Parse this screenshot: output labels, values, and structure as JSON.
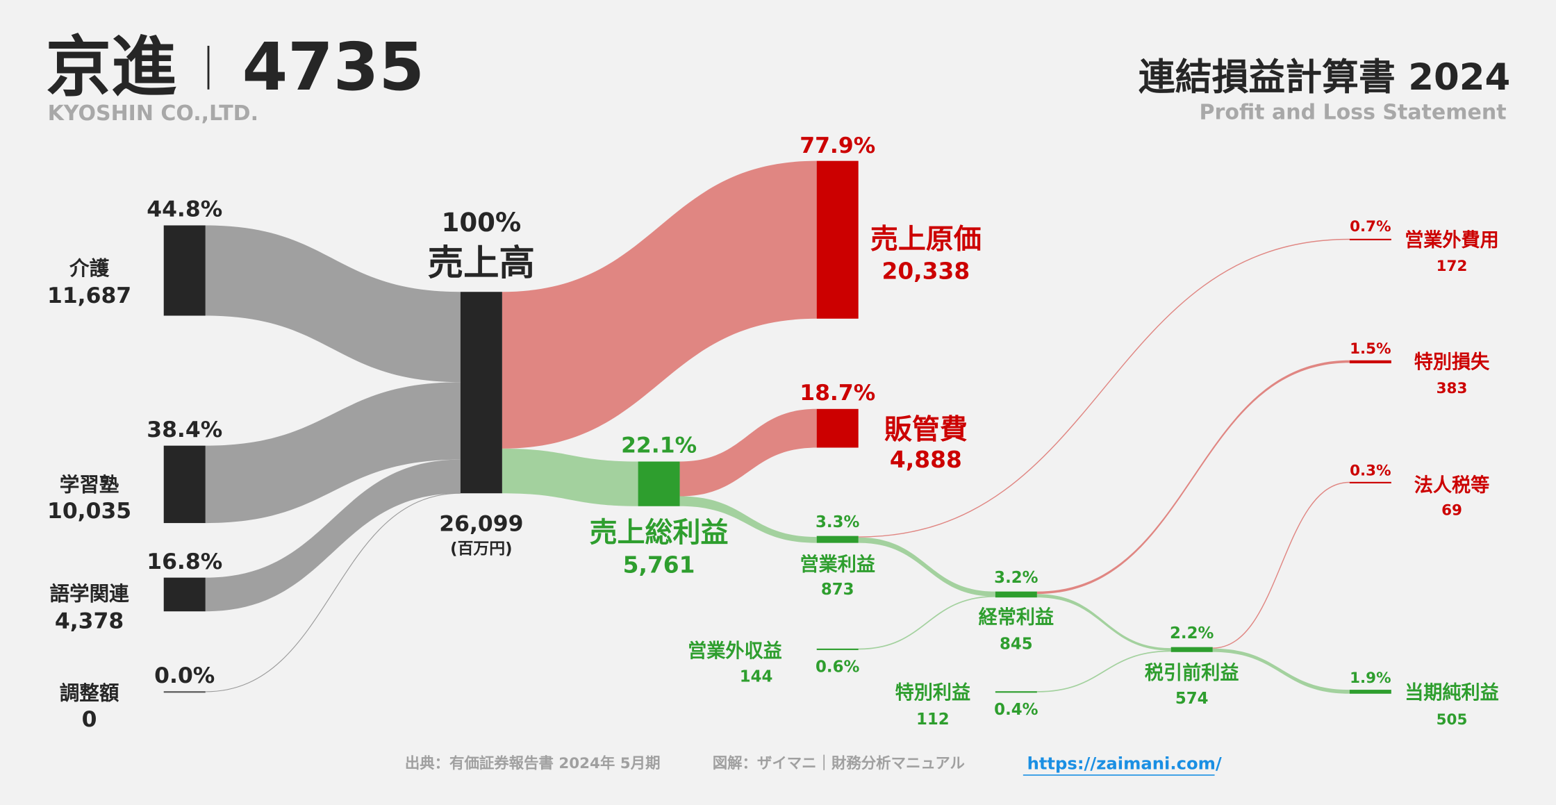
{
  "header": {
    "company": "京進",
    "separator": "｜",
    "ticker": "4735",
    "company_en": "KYOSHIN CO.,LTD.",
    "title": "連結損益計算書 2024",
    "subtitle": "Profit and Loss Statement"
  },
  "chart_data": {
    "type": "sankey",
    "unit": "(百万円)",
    "colors": {
      "node_dark": "#262626",
      "cost_red": "#cc0000",
      "profit_green": "#2e9e2e",
      "flow_gray": "#a0a0a0",
      "flow_red": "#e08682",
      "flow_green": "#a3d19e"
    },
    "segments": [
      {
        "name": "介護",
        "value": "11,687",
        "pct": "44.8%"
      },
      {
        "name": "学習塾",
        "value": "10,035",
        "pct": "38.4%"
      },
      {
        "name": "語学関連",
        "value": "4,378",
        "pct": "16.8%"
      },
      {
        "name": "調整額",
        "value": "0",
        "pct": "0.0%"
      }
    ],
    "revenue": {
      "name": "売上高",
      "value": "26,099",
      "pct": "100%"
    },
    "cost_of_sales": {
      "name": "売上原価",
      "value": "20,338",
      "pct": "77.9%"
    },
    "gross_profit": {
      "name": "売上総利益",
      "value": "5,761",
      "pct": "22.1%"
    },
    "sga": {
      "name": "販管費",
      "value": "4,888",
      "pct": "18.7%"
    },
    "operating_profit": {
      "name": "営業利益",
      "value": "873",
      "pct": "3.3%"
    },
    "non_operating_income": {
      "name": "営業外収益",
      "value": "144",
      "pct": "0.6%"
    },
    "non_operating_expense": {
      "name": "営業外費用",
      "value": "172",
      "pct": "0.7%"
    },
    "ordinary_profit": {
      "name": "経常利益",
      "value": "845",
      "pct": "3.2%"
    },
    "extraordinary_income": {
      "name": "特別利益",
      "value": "112",
      "pct": "0.4%"
    },
    "extraordinary_loss": {
      "name": "特別損失",
      "value": "383",
      "pct": "1.5%"
    },
    "pretax_income": {
      "name": "税引前利益",
      "value": "574",
      "pct": "2.2%"
    },
    "income_taxes": {
      "name": "法人税等",
      "value": "69",
      "pct": "0.3%"
    },
    "net_income": {
      "name": "当期純利益",
      "value": "505",
      "pct": "1.9%"
    }
  },
  "footer": {
    "source": "出典：有価証券報告書 2024年 5月期",
    "credit": "図解：ザイマニ｜財務分析マニュアル",
    "link": "https://zaimani.com/"
  }
}
